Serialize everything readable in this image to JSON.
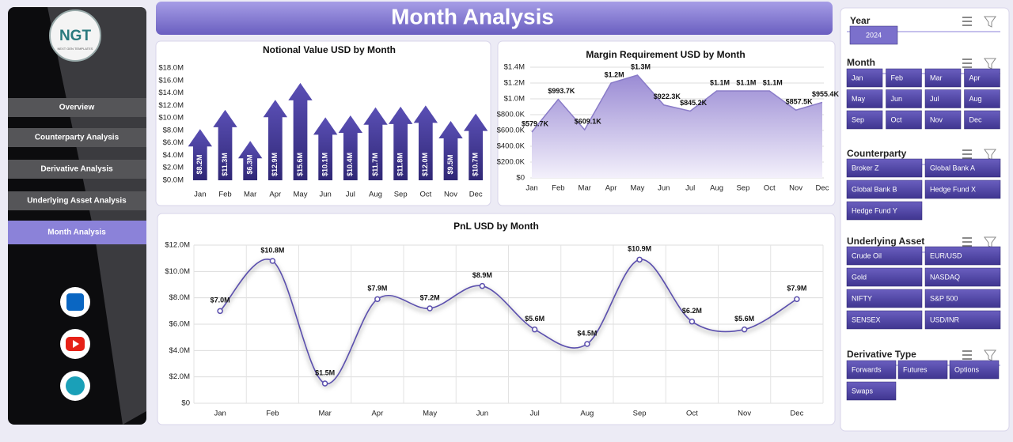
{
  "header": {
    "title": "Month Analysis"
  },
  "logo": {
    "text": "NGT",
    "tagline": "NEXT GEN TEMPLATES"
  },
  "nav": [
    "Overview",
    "Counterparty Analysis",
    "Derivative Analysis",
    "Underlying Asset Analysis",
    "Month Analysis"
  ],
  "chart_data": [
    {
      "type": "bar",
      "title": "Notional Value USD by Month",
      "color": "#43388f",
      "grid": false,
      "categories": [
        "Jan",
        "Feb",
        "Mar",
        "Apr",
        "May",
        "Jun",
        "Jul",
        "Aug",
        "Sep",
        "Oct",
        "Nov",
        "Dec"
      ],
      "values": [
        8200000,
        11300000,
        6300000,
        12900000,
        15600000,
        10100000,
        10400000,
        11700000,
        11800000,
        12000000,
        9500000,
        10700000
      ],
      "value_labels": [
        "$8.2M",
        "$11.3M",
        "$6.3M",
        "$12.9M",
        "$15.6M",
        "$10.1M",
        "$10.4M",
        "$11.7M",
        "$11.8M",
        "$12.0M",
        "$9.5M",
        "$10.7M"
      ],
      "ylim": [
        0,
        18000000
      ],
      "yticks": [
        {
          "value": 0,
          "label": "$0.0M"
        },
        {
          "value": 2000000,
          "label": "$2.0M"
        },
        {
          "value": 4000000,
          "label": "$4.0M"
        },
        {
          "value": 6000000,
          "label": "$6.0M"
        },
        {
          "value": 8000000,
          "label": "$8.0M"
        },
        {
          "value": 10000000,
          "label": "$10.0M"
        },
        {
          "value": 12000000,
          "label": "$12.0M"
        },
        {
          "value": 14000000,
          "label": "$14.0M"
        },
        {
          "value": 16000000,
          "label": "$16.0M"
        },
        {
          "value": 18000000,
          "label": "$18.0M"
        }
      ]
    },
    {
      "type": "area",
      "title": "Margin Requirement USD by Month",
      "color": "#8a7cc8",
      "grid": true,
      "categories": [
        "Jan",
        "Feb",
        "Mar",
        "Apr",
        "May",
        "Jun",
        "Jul",
        "Aug",
        "Sep",
        "Oct",
        "Nov",
        "Dec"
      ],
      "values": [
        579700,
        993700,
        609100,
        1200000,
        1300000,
        922300,
        845200,
        1100000,
        1100000,
        1100000,
        857500,
        955400
      ],
      "value_labels": [
        "$579.7K",
        "$993.7K",
        "$609.1K",
        "$1.2M",
        "$1.3M",
        "$922.3K",
        "$845.2K",
        "$1.1M",
        "$1.1M",
        "$1.1M",
        "$857.5K",
        "$955.4K"
      ],
      "ylim": [
        0,
        1400000
      ],
      "yticks": [
        {
          "value": 0,
          "label": "$0"
        },
        {
          "value": 200000,
          "label": "$200.0K"
        },
        {
          "value": 400000,
          "label": "$400.0K"
        },
        {
          "value": 600000,
          "label": "$600.0K"
        },
        {
          "value": 800000,
          "label": "$800.0K"
        },
        {
          "value": 1000000,
          "label": "$1.0M"
        },
        {
          "value": 1200000,
          "label": "$1.2M"
        },
        {
          "value": 1400000,
          "label": "$1.4M"
        }
      ]
    },
    {
      "type": "line",
      "title": "PnL USD by Month",
      "color": "#5b4fae",
      "grid": true,
      "categories": [
        "Jan",
        "Feb",
        "Mar",
        "Apr",
        "May",
        "Jun",
        "Jul",
        "Aug",
        "Sep",
        "Oct",
        "Nov",
        "Dec"
      ],
      "values": [
        7000000,
        10800000,
        1500000,
        7900000,
        7200000,
        8900000,
        5600000,
        4500000,
        10900000,
        6200000,
        5600000,
        7900000
      ],
      "value_labels": [
        "$7.0M",
        "$10.8M",
        "$1.5M",
        "$7.9M",
        "$7.2M",
        "$8.9M",
        "$5.6M",
        "$4.5M",
        "$10.9M",
        "$6.2M",
        "$5.6M",
        "$7.9M"
      ],
      "ylim": [
        0,
        12000000
      ],
      "yticks": [
        {
          "value": 0,
          "label": "$0"
        },
        {
          "value": 2000000,
          "label": "$2.0M"
        },
        {
          "value": 4000000,
          "label": "$4.0M"
        },
        {
          "value": 6000000,
          "label": "$6.0M"
        },
        {
          "value": 8000000,
          "label": "$8.0M"
        },
        {
          "value": 10000000,
          "label": "$10.0M"
        },
        {
          "value": 12000000,
          "label": "$12.0M"
        }
      ]
    }
  ],
  "slicers": [
    {
      "title": "Year",
      "items": [
        "2024"
      ]
    },
    {
      "title": "Month",
      "items": [
        "Jan",
        "Feb",
        "Mar",
        "Apr",
        "May",
        "Jun",
        "Jul",
        "Aug",
        "Sep",
        "Oct",
        "Nov",
        "Dec"
      ]
    },
    {
      "title": "Counterparty",
      "items": [
        "Broker Z",
        "Global Bank A",
        "Global Bank B",
        "Hedge Fund X",
        "Hedge Fund Y"
      ]
    },
    {
      "title": "Underlying Asset",
      "items": [
        "Crude Oil",
        "EUR/USD",
        "Gold",
        "NASDAQ",
        "NIFTY",
        "S&P 500",
        "SENSEX",
        "USD/INR"
      ]
    },
    {
      "title": "Derivative Type",
      "items": [
        "Forwards",
        "Futures",
        "Options",
        "Swaps"
      ]
    }
  ]
}
